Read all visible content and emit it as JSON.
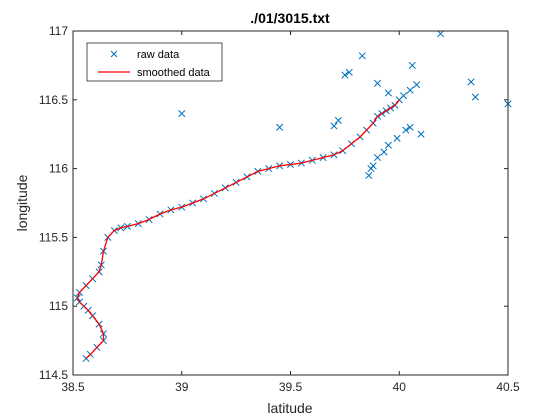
{
  "chart_data": {
    "type": "scatter",
    "title": "./01/3015.txt",
    "xlabel": "latitude",
    "ylabel": "longitude",
    "xlim": [
      38.5,
      40.5
    ],
    "ylim": [
      114.5,
      117
    ],
    "xticks": [
      38.5,
      39,
      39.5,
      40,
      40.5
    ],
    "yticks": [
      114.5,
      115,
      115.5,
      116,
      116.5,
      117
    ],
    "xtick_labels": [
      "38.5",
      "39",
      "39.5",
      "40",
      "40.5"
    ],
    "ytick_labels": [
      "114.5",
      "115",
      "115.5",
      "116",
      "116.5",
      "117"
    ],
    "grid": false,
    "legend": {
      "location": "top-left",
      "entries": [
        "raw data",
        "smoothed data"
      ]
    },
    "series": [
      {
        "name": "raw data",
        "marker": "x",
        "color": "#0072BD",
        "x": [
          38.56,
          38.58,
          38.61,
          38.64,
          38.64,
          38.62,
          38.59,
          38.57,
          38.55,
          38.53,
          38.52,
          38.53,
          38.56,
          38.59,
          38.62,
          38.63,
          38.64,
          38.66,
          38.69,
          38.72,
          38.75,
          38.8,
          38.85,
          38.9,
          38.95,
          39.0,
          39.05,
          39.1,
          39.15,
          39.2,
          39.25,
          39.3,
          39.35,
          39.4,
          39.45,
          39.5,
          39.55,
          39.6,
          39.65,
          39.7,
          39.74,
          39.78,
          39.82,
          39.85,
          39.88,
          39.9,
          39.92,
          39.94,
          39.96,
          39.98,
          40.0,
          40.02,
          40.05,
          40.08,
          39.83,
          39.9,
          39.95,
          40.05,
          40.1,
          40.19,
          40.33,
          40.35,
          40.5,
          39.0,
          39.45,
          39.7,
          39.72,
          39.75,
          39.77,
          39.86,
          39.87,
          39.88,
          39.9,
          39.93,
          39.95,
          39.99,
          40.03,
          40.06
        ],
        "y": [
          114.62,
          114.65,
          114.7,
          114.75,
          114.8,
          114.87,
          114.93,
          114.97,
          115.0,
          115.03,
          115.06,
          115.1,
          115.15,
          115.2,
          115.25,
          115.3,
          115.4,
          115.5,
          115.55,
          115.57,
          115.58,
          115.6,
          115.63,
          115.67,
          115.7,
          115.72,
          115.75,
          115.78,
          115.82,
          115.86,
          115.9,
          115.94,
          115.98,
          116.0,
          116.02,
          116.03,
          116.04,
          116.06,
          116.08,
          116.1,
          116.13,
          116.18,
          116.23,
          116.28,
          116.33,
          116.38,
          116.4,
          116.42,
          116.44,
          116.46,
          116.5,
          116.53,
          116.57,
          116.61,
          116.82,
          116.62,
          116.55,
          116.3,
          116.25,
          116.98,
          116.63,
          116.52,
          116.47,
          116.4,
          116.3,
          116.31,
          116.35,
          116.68,
          116.7,
          115.95,
          116.0,
          116.02,
          116.08,
          116.12,
          116.17,
          116.22,
          116.28,
          116.75
        ]
      },
      {
        "name": "smoothed data",
        "marker": "line",
        "color": "#FF0000",
        "x": [
          38.56,
          38.58,
          38.61,
          38.64,
          38.64,
          38.62,
          38.59,
          38.57,
          38.55,
          38.53,
          38.52,
          38.53,
          38.56,
          38.59,
          38.62,
          38.63,
          38.64,
          38.66,
          38.69,
          38.72,
          38.75,
          38.8,
          38.85,
          38.9,
          38.95,
          39.0,
          39.05,
          39.1,
          39.15,
          39.2,
          39.25,
          39.3,
          39.35,
          39.4,
          39.45,
          39.5,
          39.55,
          39.6,
          39.65,
          39.7,
          39.74,
          39.78,
          39.82,
          39.85,
          39.88,
          39.9,
          39.92,
          39.94,
          39.96,
          39.98,
          40.0
        ],
        "y": [
          114.62,
          114.65,
          114.7,
          114.75,
          114.8,
          114.87,
          114.93,
          114.97,
          115.0,
          115.03,
          115.06,
          115.1,
          115.15,
          115.2,
          115.25,
          115.3,
          115.4,
          115.5,
          115.55,
          115.57,
          115.58,
          115.6,
          115.63,
          115.67,
          115.7,
          115.72,
          115.75,
          115.78,
          115.82,
          115.86,
          115.9,
          115.94,
          115.98,
          116.0,
          116.02,
          116.03,
          116.04,
          116.06,
          116.08,
          116.1,
          116.13,
          116.18,
          116.23,
          116.28,
          116.33,
          116.38,
          116.4,
          116.42,
          116.44,
          116.46,
          116.5
        ]
      }
    ]
  }
}
